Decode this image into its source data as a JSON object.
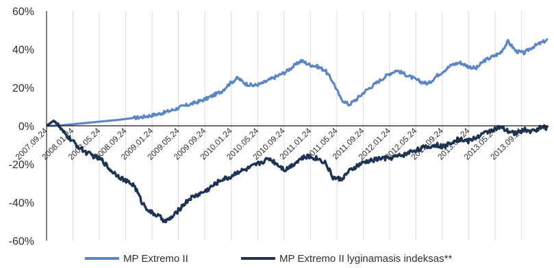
{
  "chart_data": {
    "type": "line",
    "title": "",
    "xlabel": "",
    "ylabel": "",
    "ylim": [
      -60,
      60
    ],
    "yticks": [
      "60%",
      "40%",
      "20%",
      "0%",
      "-20%",
      "-40%",
      "-60%"
    ],
    "xticks": [
      "2007.09.24",
      "2008.01.24",
      "2008.05.24",
      "2008.09.24",
      "2009.01.24",
      "2009.05.24",
      "2009.09.24",
      "2010.01.24",
      "2010.05.24",
      "2010.09.24",
      "2011.01.24",
      "2011.05.24",
      "2011.09.24",
      "2012.01.24",
      "2012.05.24",
      "2012.09.24",
      "2013.01.24",
      "2013.05.24",
      "2013.09.24"
    ],
    "legend": "bottom",
    "grid": true,
    "series": [
      {
        "name": "MP Extremo II",
        "color": "#5b86c5",
        "values": [
          0,
          0,
          0.3,
          0.7,
          1.1,
          1.5,
          1.9,
          2.3,
          2.7,
          3.1,
          3.6,
          4.1,
          4.6,
          5.3,
          6.1,
          7.2,
          8.5,
          10,
          11.2,
          12.5,
          14,
          16,
          18,
          22,
          25,
          22,
          21,
          22,
          24,
          26,
          28,
          31,
          34,
          32,
          31,
          29,
          23,
          14,
          11,
          14,
          18,
          21,
          24,
          27,
          29,
          27,
          25,
          23,
          22,
          26,
          29,
          32,
          33,
          31,
          30,
          34,
          36,
          38,
          44,
          39,
          38,
          41,
          43,
          45
        ]
      },
      {
        "name": "MP Extremo II lyginamasis indeksas**",
        "color": "#1c3353",
        "values": [
          0,
          3,
          -3,
          -7,
          -11,
          -14,
          -16,
          -18,
          -23,
          -26,
          -29,
          -31,
          -40,
          -45,
          -47,
          -50,
          -47,
          -42,
          -38,
          -36,
          -34,
          -31,
          -28,
          -27,
          -24,
          -23,
          -21,
          -19,
          -17,
          -20,
          -23,
          -20,
          -17,
          -16,
          -17,
          -19,
          -27,
          -28,
          -24,
          -21,
          -19,
          -18,
          -17,
          -17,
          -16,
          -15,
          -13,
          -12,
          -11,
          -10,
          -11,
          -8,
          -7,
          -8,
          -6,
          -4,
          -2,
          -1,
          -3,
          -4,
          -2,
          -3,
          -1,
          -1
        ]
      }
    ]
  }
}
